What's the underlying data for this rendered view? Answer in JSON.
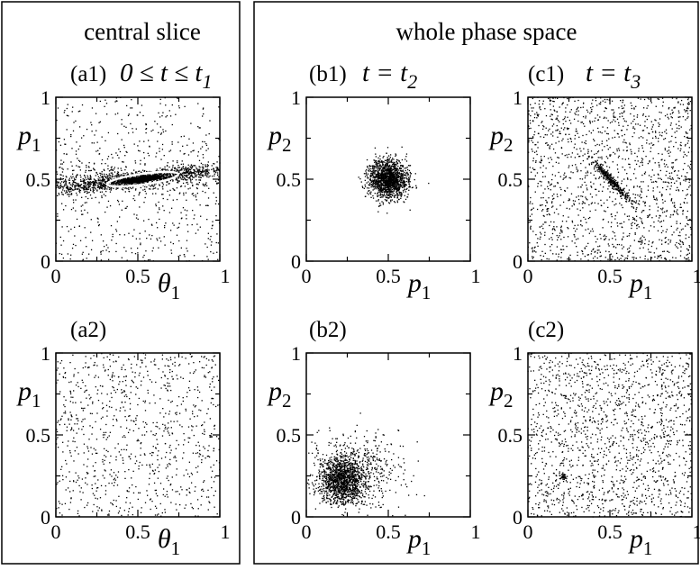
{
  "figure": {
    "left_header": "central slice",
    "right_header": "whole phase space"
  },
  "chart_data": [
    {
      "id": "a1",
      "type": "scatter",
      "label": "(a1)",
      "time": "0 ≤ t ≤ t",
      "time_sub": "1",
      "xlabel": "θ",
      "xlabel_sub": "1",
      "ylabel": "p",
      "ylabel_sub": "1",
      "xlim": [
        0,
        1
      ],
      "ylim": [
        0,
        1
      ],
      "xticks": [
        "0",
        "0.5",
        "1"
      ],
      "yticks": [
        "0",
        "0.5",
        "1"
      ],
      "pattern": "central_band",
      "dense_region": {
        "x_center": 0.5,
        "y_center": 0.5,
        "x_width": 0.3,
        "y_width": 0.05
      },
      "background_points": 900,
      "core_points": 1400
    },
    {
      "id": "a2",
      "type": "scatter",
      "label": "(a2)",
      "time": "",
      "time_sub": "",
      "xlabel": "θ",
      "xlabel_sub": "1",
      "ylabel": "p",
      "ylabel_sub": "1",
      "xlim": [
        0,
        1
      ],
      "ylim": [
        0,
        1
      ],
      "xticks": [
        "0",
        "0.5",
        "1"
      ],
      "yticks": [
        "0",
        "0.5",
        "1"
      ],
      "pattern": "uniform",
      "background_points": 900,
      "core_points": 0
    },
    {
      "id": "b1",
      "type": "scatter",
      "label": "(b1)",
      "time": "t = t",
      "time_sub": "2",
      "xlabel": "p",
      "xlabel_sub": "1",
      "ylabel": "p",
      "ylabel_sub": "2",
      "xlim": [
        0,
        1
      ],
      "ylim": [
        0,
        1
      ],
      "xticks": [
        "0",
        "0.5",
        "1"
      ],
      "yticks": [
        "0",
        "0.5",
        "1"
      ],
      "pattern": "cluster",
      "dense_region": {
        "x_center": 0.5,
        "y_center": 0.5,
        "x_width": 0.06,
        "y_width": 0.06
      },
      "background_points": 0,
      "core_points": 1500
    },
    {
      "id": "c1",
      "type": "scatter",
      "label": "(c1)",
      "time": "t = t",
      "time_sub": "3",
      "xlabel": "p",
      "xlabel_sub": "1",
      "ylabel": "p",
      "ylabel_sub": "2",
      "xlim": [
        0,
        1
      ],
      "ylim": [
        0,
        1
      ],
      "xticks": [
        "0",
        "0.5",
        "1"
      ],
      "yticks": [
        "0",
        "0.5",
        "1"
      ],
      "pattern": "uniform_plus_diagonal_cluster",
      "dense_region": {
        "x_center": 0.5,
        "y_center": 0.5,
        "x_width": 0.06,
        "y_width": 0.06
      },
      "background_points": 1500,
      "core_points": 350
    },
    {
      "id": "b2",
      "type": "scatter",
      "label": "(b2)",
      "time": "",
      "time_sub": "",
      "xlabel": "p",
      "xlabel_sub": "1",
      "ylabel": "p",
      "ylabel_sub": "2",
      "xlim": [
        0,
        1
      ],
      "ylim": [
        0,
        1
      ],
      "xticks": [
        "0",
        "0.5",
        "1"
      ],
      "yticks": [
        "0",
        "0.5",
        "1"
      ],
      "pattern": "spread_cluster",
      "dense_region": {
        "x_center": 0.22,
        "y_center": 0.22,
        "x_width": 0.07,
        "y_width": 0.07
      },
      "background_points": 500,
      "core_points": 1200
    },
    {
      "id": "c2",
      "type": "scatter",
      "label": "(c2)",
      "time": "",
      "time_sub": "",
      "xlabel": "p",
      "xlabel_sub": "1",
      "ylabel": "p",
      "ylabel_sub": "2",
      "xlim": [
        0,
        1
      ],
      "ylim": [
        0,
        1
      ],
      "xticks": [
        "0",
        "0.5",
        "1"
      ],
      "yticks": [
        "0",
        "0.5",
        "1"
      ],
      "pattern": "uniform_plus_small_cluster",
      "dense_region": {
        "x_center": 0.22,
        "y_center": 0.25,
        "x_width": 0.012,
        "y_width": 0.012
      },
      "background_points": 1500,
      "core_points": 40
    }
  ]
}
